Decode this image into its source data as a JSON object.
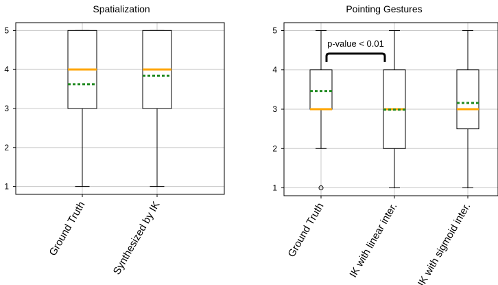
{
  "chart_data": [
    {
      "type": "box",
      "title": "Spatialization",
      "xlabel": "",
      "ylabel": "",
      "ylim": [
        0.8,
        5.2
      ],
      "yticks": [
        "1",
        "2",
        "3",
        "4",
        "5"
      ],
      "grid": true,
      "categories": [
        "Ground Truth",
        "Synthesized by IK"
      ],
      "boxes": [
        {
          "whisker_low": 1,
          "q1": 3,
          "median": 4,
          "q3": 5,
          "whisker_high": 5,
          "mean": 3.62,
          "outliers": []
        },
        {
          "whisker_low": 1,
          "q1": 3,
          "median": 4,
          "q3": 5,
          "whisker_high": 5,
          "mean": 3.84,
          "outliers": []
        }
      ],
      "annotations": []
    },
    {
      "type": "box",
      "title": "Pointing Gestures",
      "xlabel": "",
      "ylabel": "",
      "ylim": [
        0.8,
        5.2
      ],
      "yticks": [
        "1",
        "2",
        "3",
        "4",
        "5"
      ],
      "grid": true,
      "categories": [
        "Ground Truth",
        "IK with linear inter.",
        "IK with sigmoid inter."
      ],
      "boxes": [
        {
          "whisker_low": 2,
          "q1": 3,
          "median": 3,
          "q3": 4,
          "whisker_high": 5,
          "mean": 3.46,
          "outliers": [
            1
          ]
        },
        {
          "whisker_low": 1,
          "q1": 2,
          "median": 3,
          "q3": 4,
          "whisker_high": 5,
          "mean": 2.99,
          "outliers": []
        },
        {
          "whisker_low": 1,
          "q1": 2.5,
          "median": 3,
          "q3": 4,
          "whisker_high": 5,
          "mean": 3.16,
          "outliers": []
        }
      ],
      "annotations": [
        {
          "text": "p-value < 0.01",
          "between": [
            0,
            1
          ]
        }
      ]
    }
  ],
  "colors": {
    "median": "#ffa500",
    "mean": "#228b22",
    "box": "#000000",
    "grid": "#c8c8c8"
  }
}
